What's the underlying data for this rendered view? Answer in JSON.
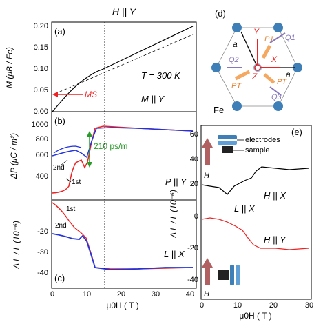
{
  "figure": {
    "left_title": "H || Y",
    "panel_a": {
      "label": "(a)",
      "ylabel": "M (μB / Fe)",
      "yticks": [
        "0.00",
        "0.05",
        "0.10",
        "0.15",
        "0.20"
      ],
      "temperature": "T = 300 K",
      "ms_label": "MS",
      "config": "M || Y"
    },
    "panel_b": {
      "label": "(b)",
      "ylabel": "ΔP (μC / m²)",
      "yticks": [
        "400",
        "600",
        "800",
        "1000"
      ],
      "rate": "210 ps/m",
      "second": "2nd",
      "first": "1st",
      "config": "P || Y"
    },
    "panel_c": {
      "label": "(c)",
      "ylabel": "Δ L / L (10⁻⁶)",
      "yticks": [
        "-40",
        "-30",
        "-20"
      ],
      "first": "1st",
      "second": "2nd",
      "config": "L || X",
      "xticks": [
        "0",
        "10",
        "20",
        "30",
        "40"
      ],
      "xlabel": "μ0H ( T )"
    },
    "panel_d": {
      "label": "(d)",
      "atom": "Fe",
      "axes": [
        "Y",
        "X",
        "Z"
      ],
      "lattice": [
        "a",
        "a"
      ],
      "vectors": [
        "P1",
        "Q1",
        "Q2",
        "PT",
        "PT",
        "Q3"
      ]
    },
    "panel_e": {
      "label": "(e)",
      "electrodes": "electrodes",
      "sample": "sample",
      "field_arrow": "H",
      "config_x": "H || X",
      "center": "L || X",
      "config_y": "H || Y",
      "ylabel": "Δ L / L (10⁻⁶)",
      "yticks": [
        "-40",
        "-20",
        "0",
        "20",
        "40",
        "60"
      ],
      "xticks": [
        "0",
        "10",
        "20",
        "30"
      ],
      "xlabel": "μ0H ( T )"
    }
  },
  "colors": {
    "red": "#ee2222",
    "blue": "#2233dd",
    "black": "#000000",
    "green": "#2a9a2a",
    "orange": "#f5a860",
    "purple": "#8877bb",
    "sphere": "#3f7fb8"
  },
  "chart_data": [
    {
      "type": "line",
      "panel": "(a)",
      "ylabel": "M (μB / Fe)",
      "xlim": [
        0,
        42
      ],
      "ylim": [
        0,
        0.22
      ],
      "series": [
        {
          "x": [
            0,
            2,
            6,
            10,
            13,
            15,
            20,
            30,
            40
          ],
          "y": [
            0.0,
            0.02,
            0.05,
            0.075,
            0.088,
            0.095,
            0.115,
            0.158,
            0.2
          ]
        }
      ]
    },
    {
      "type": "line",
      "panel": "(b)",
      "ylabel": "ΔP (μC / m²)",
      "xlim": [
        0,
        42
      ],
      "ylim": [
        300,
        1150
      ],
      "series": [
        {
          "x": [
            0,
            4,
            6,
            8,
            10,
            12,
            14,
            15,
            16,
            20,
            30,
            40
          ],
          "y": [
            640,
            650,
            680,
            700,
            720,
            690,
            660,
            950,
            970,
            960,
            935,
            905
          ]
        },
        {
          "x": [
            0,
            4,
            7,
            9,
            10,
            12,
            13,
            14,
            15,
            16,
            20,
            30,
            40
          ],
          "y": [
            330,
            340,
            360,
            500,
            590,
            620,
            560,
            720,
            950,
            975,
            960,
            935,
            905
          ]
        }
      ]
    },
    {
      "type": "line",
      "panel": "(c)",
      "ylabel": "Δ L / L (10⁻⁶)",
      "xlabel": "μ0H ( T )",
      "xlim": [
        0,
        42
      ],
      "ylim": [
        -50,
        -5
      ],
      "series": [
        {
          "x": [
            0,
            3,
            6,
            9,
            11,
            12,
            13,
            14,
            15,
            16,
            20,
            30,
            40
          ],
          "y": [
            -21,
            -22,
            -23,
            -23,
            -24,
            -22,
            -26,
            -36,
            -45,
            -47,
            -47,
            -46,
            -46
          ]
        },
        {
          "x": [
            0,
            2,
            4,
            6,
            8,
            10,
            12,
            14,
            15,
            16,
            20,
            40
          ],
          "y": [
            -7,
            -9,
            -13,
            -17,
            -20,
            -23,
            -26,
            -38,
            -45,
            -47,
            -47,
            -46
          ]
        }
      ]
    },
    {
      "type": "line",
      "panel": "(e)",
      "ylabel": "Δ L / L (10⁻⁶)",
      "xlabel": "μ0H ( T )",
      "xlim": [
        0,
        30
      ],
      "ylim": [
        -45,
        65
      ],
      "series": [
        {
          "x": [
            0,
            2,
            4,
            6,
            8,
            10,
            12,
            14,
            16,
            20,
            25,
            28
          ],
          "y": [
            23,
            22,
            20,
            17,
            22,
            22,
            22,
            26,
            36,
            35,
            34,
            34
          ]
        },
        {
          "x": [
            0,
            2,
            4,
            6,
            8,
            10,
            12,
            14,
            16,
            20,
            25,
            28
          ],
          "y": [
            0,
            1,
            0,
            0,
            -4,
            -8,
            -11,
            -16,
            -25,
            -26,
            -26,
            -26
          ]
        }
      ]
    }
  ]
}
